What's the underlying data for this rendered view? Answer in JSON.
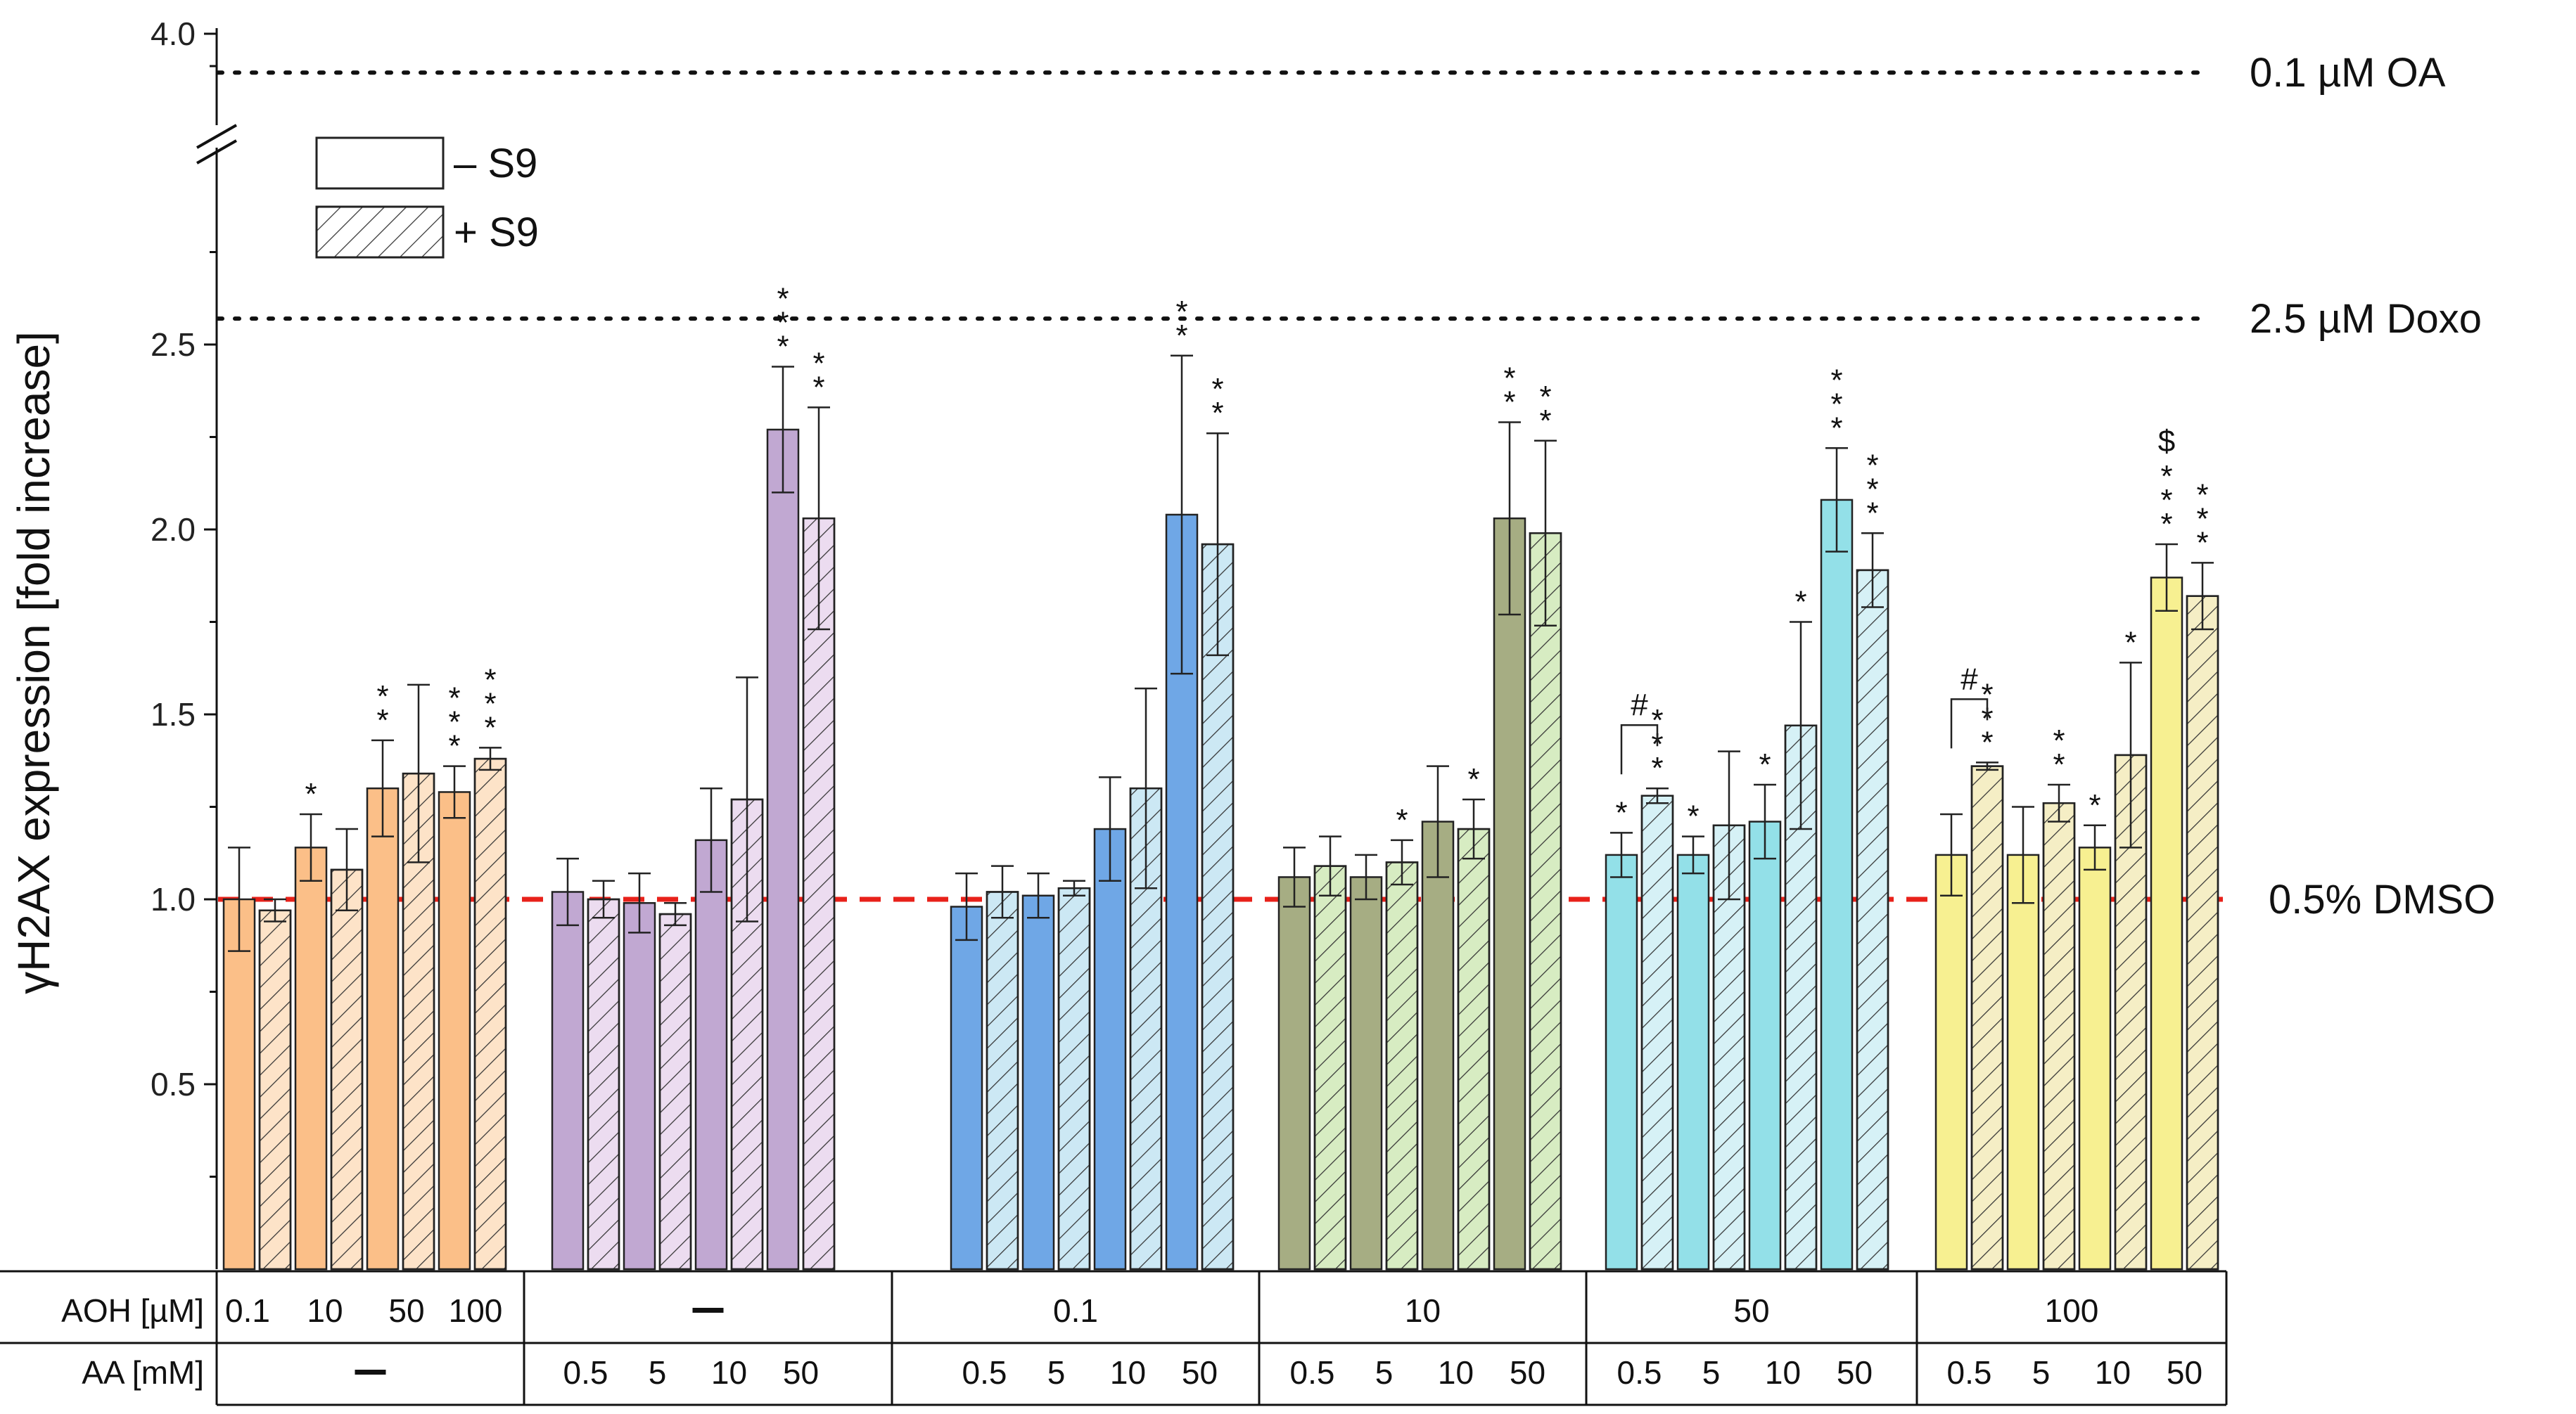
{
  "chart_data": {
    "type": "bar",
    "ylabel": "γH2AX expression [fold increase]",
    "ylim": [
      0,
      4.0
    ],
    "axis_break": [
      2.8,
      3.8
    ],
    "yticks": [
      {
        "label": "0.5",
        "value": 0.5
      },
      {
        "label": "1.0",
        "value": 1.0
      },
      {
        "label": "1.5",
        "value": 1.5
      },
      {
        "label": "2.0",
        "value": 2.0
      },
      {
        "label": "2.5",
        "value": 2.5
      },
      {
        "label": "4.0",
        "value": 4.0
      }
    ],
    "reference_lines": [
      {
        "label": "0.1 µM OA",
        "value": 3.88,
        "style": "dotted",
        "color": "#111111"
      },
      {
        "label": "2.5 µM Doxo",
        "value": 2.57,
        "style": "dotted",
        "color": "#111111"
      },
      {
        "label": "0.5% DMSO",
        "value": 1.0,
        "style": "dashed",
        "color": "#e8211a"
      }
    ],
    "legend": [
      {
        "label": "– S9",
        "pattern": "solid"
      },
      {
        "label": "+ S9",
        "pattern": "hatched"
      }
    ],
    "groups": [
      {
        "name": "AOH",
        "color": "#fbbf88",
        "light": "#fde3c8",
        "bars": [
          {
            "s9": "-",
            "value": 1.0,
            "err": 0.14,
            "sig": ""
          },
          {
            "s9": "+",
            "value": 0.97,
            "err": 0.03,
            "sig": ""
          },
          {
            "s9": "-",
            "value": 1.14,
            "err": 0.09,
            "sig": "*"
          },
          {
            "s9": "+",
            "value": 1.08,
            "err": 0.11,
            "sig": ""
          },
          {
            "s9": "-",
            "value": 1.3,
            "err": 0.13,
            "sig": "**"
          },
          {
            "s9": "+",
            "value": 1.34,
            "err": 0.24,
            "sig": ""
          },
          {
            "s9": "-",
            "value": 1.29,
            "err": 0.07,
            "sig": "***"
          },
          {
            "s9": "+",
            "value": 1.38,
            "err": 0.03,
            "sig": "***"
          }
        ]
      },
      {
        "name": "AA",
        "color": "#c1a8d2",
        "light": "#ecdcf0",
        "bars": [
          {
            "s9": "-",
            "value": 1.02,
            "err": 0.09,
            "sig": ""
          },
          {
            "s9": "+",
            "value": 1.0,
            "err": 0.05,
            "sig": ""
          },
          {
            "s9": "-",
            "value": 0.99,
            "err": 0.08,
            "sig": ""
          },
          {
            "s9": "+",
            "value": 0.96,
            "err": 0.03,
            "sig": ""
          },
          {
            "s9": "-",
            "value": 1.16,
            "err": 0.14,
            "sig": ""
          },
          {
            "s9": "+",
            "value": 1.27,
            "err": 0.33,
            "sig": ""
          },
          {
            "s9": "-",
            "value": 2.27,
            "err": 0.17,
            "sig": "***"
          },
          {
            "s9": "+",
            "value": 2.03,
            "err": 0.3,
            "sig": "**"
          }
        ]
      },
      {
        "name": "0.1 µM AOH + AA",
        "color": "#6fa7e6",
        "light": "#cce8f4",
        "bars": [
          {
            "s9": "-",
            "value": 0.98,
            "err": 0.09,
            "sig": ""
          },
          {
            "s9": "+",
            "value": 1.02,
            "err": 0.07,
            "sig": ""
          },
          {
            "s9": "-",
            "value": 1.01,
            "err": 0.06,
            "sig": ""
          },
          {
            "s9": "+",
            "value": 1.03,
            "err": 0.02,
            "sig": ""
          },
          {
            "s9": "-",
            "value": 1.19,
            "err": 0.14,
            "sig": ""
          },
          {
            "s9": "+",
            "value": 1.3,
            "err": 0.27,
            "sig": ""
          },
          {
            "s9": "-",
            "value": 2.04,
            "err": 0.43,
            "sig": "**"
          },
          {
            "s9": "+",
            "value": 1.96,
            "err": 0.3,
            "sig": "**"
          }
        ]
      },
      {
        "name": "10 µM AOH + AA",
        "color": "#a6ad83",
        "light": "#d7ecc2",
        "bars": [
          {
            "s9": "-",
            "value": 1.06,
            "err": 0.08,
            "sig": ""
          },
          {
            "s9": "+",
            "value": 1.09,
            "err": 0.08,
            "sig": ""
          },
          {
            "s9": "-",
            "value": 1.06,
            "err": 0.06,
            "sig": ""
          },
          {
            "s9": "+",
            "value": 1.1,
            "err": 0.06,
            "sig": "*"
          },
          {
            "s9": "-",
            "value": 1.21,
            "err": 0.15,
            "sig": ""
          },
          {
            "s9": "+",
            "value": 1.19,
            "err": 0.08,
            "sig": "*"
          },
          {
            "s9": "-",
            "value": 2.03,
            "err": 0.26,
            "sig": "**"
          },
          {
            "s9": "+",
            "value": 1.99,
            "err": 0.25,
            "sig": "**"
          }
        ]
      },
      {
        "name": "50 µM AOH + AA",
        "color": "#93e0e8",
        "light": "#d6f1f6",
        "bars": [
          {
            "s9": "-",
            "value": 1.12,
            "err": 0.06,
            "sig": "*"
          },
          {
            "s9": "+",
            "value": 1.28,
            "err": 0.02,
            "sig": "***"
          },
          {
            "s9": "-",
            "value": 1.12,
            "err": 0.05,
            "sig": "*"
          },
          {
            "s9": "+",
            "value": 1.2,
            "err": 0.2,
            "sig": ""
          },
          {
            "s9": "-",
            "value": 1.21,
            "err": 0.1,
            "sig": "*"
          },
          {
            "s9": "+",
            "value": 1.47,
            "err": 0.28,
            "sig": "*"
          },
          {
            "s9": "-",
            "value": 2.08,
            "err": 0.14,
            "sig": "***"
          },
          {
            "s9": "+",
            "value": 1.89,
            "err": 0.1,
            "sig": "***"
          }
        ]
      },
      {
        "name": "100 µM AOH + AA",
        "color": "#f7f091",
        "light": "#f5eec5",
        "bars": [
          {
            "s9": "-",
            "value": 1.12,
            "err": 0.11,
            "sig": ""
          },
          {
            "s9": "+",
            "value": 1.36,
            "err": 0.01,
            "sig": "***"
          },
          {
            "s9": "-",
            "value": 1.12,
            "err": 0.13,
            "sig": ""
          },
          {
            "s9": "+",
            "value": 1.26,
            "err": 0.05,
            "sig": "**"
          },
          {
            "s9": "-",
            "value": 1.14,
            "err": 0.06,
            "sig": "*"
          },
          {
            "s9": "+",
            "value": 1.39,
            "err": 0.25,
            "sig": "*"
          },
          {
            "s9": "-",
            "value": 1.87,
            "err": 0.09,
            "sig": "***"
          },
          {
            "s9": "+",
            "value": 1.82,
            "err": 0.09,
            "sig": "***"
          }
        ]
      }
    ],
    "extra_marks": [
      {
        "group": 4,
        "bars": [
          0,
          1
        ],
        "label": "#"
      },
      {
        "group": 5,
        "bars": [
          0,
          1
        ],
        "label": "#"
      },
      {
        "group": 5,
        "bars": [
          6
        ],
        "label": "$"
      }
    ],
    "table": {
      "rows": [
        {
          "label": "AOH [µM]",
          "cells": [
            {
              "text": "0.1 10 50 100",
              "items": [
                "0.1",
                "10",
                "50",
                "100"
              ]
            },
            {
              "text": "–"
            },
            {
              "text": "0.1"
            },
            {
              "text": "10"
            },
            {
              "text": "50"
            },
            {
              "text": "100"
            }
          ]
        },
        {
          "label": "AA [mM]",
          "cells": [
            {
              "text": "–"
            },
            {
              "items": [
                "0.5",
                "5",
                "10",
                "50"
              ]
            },
            {
              "items": [
                "0.5",
                "5",
                "10",
                "50"
              ]
            },
            {
              "items": [
                "0.5",
                "5",
                "10",
                "50"
              ]
            },
            {
              "items": [
                "0.5",
                "5",
                "10",
                "50"
              ]
            },
            {
              "items": [
                "0.5",
                "5",
                "10",
                "50"
              ]
            }
          ]
        }
      ]
    }
  }
}
